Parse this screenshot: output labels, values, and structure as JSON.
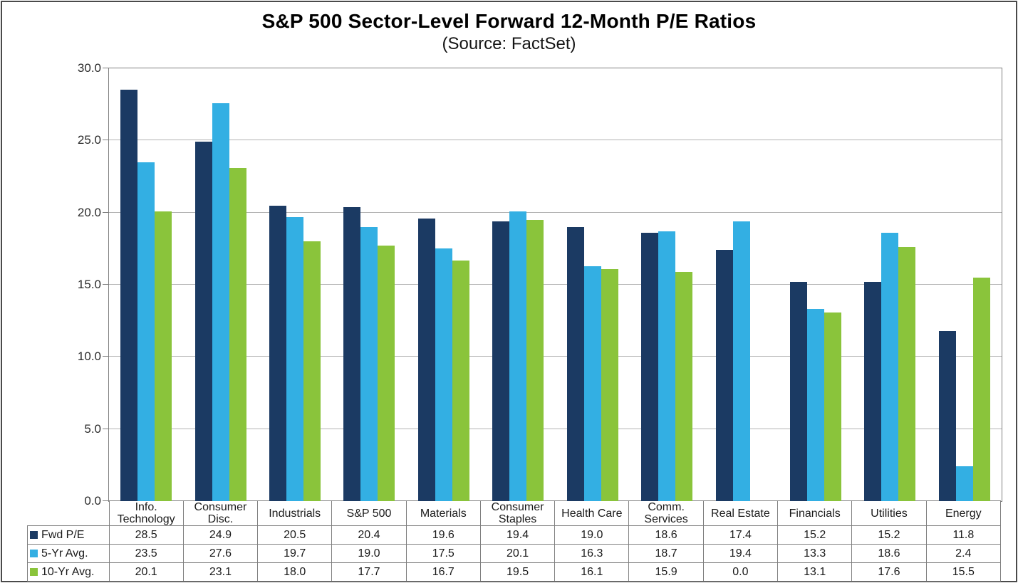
{
  "chart": {
    "title": "S&P 500 Sector-Level Forward 12-Month P/E Ratios",
    "subtitle": "(Source: FactSet)"
  },
  "chart_data": {
    "type": "bar",
    "title": "S&P 500 Sector-Level Forward 12-Month P/E Ratios",
    "subtitle": "(Source: FactSet)",
    "categories": [
      "Info. Technology",
      "Consumer Disc.",
      "Industrials",
      "S&P 500",
      "Materials",
      "Consumer Staples",
      "Health Care",
      "Comm. Services",
      "Real Estate",
      "Financials",
      "Utilities",
      "Energy"
    ],
    "series": [
      {
        "name": "Fwd P/E",
        "color": "#1b3a63",
        "values": [
          28.5,
          24.9,
          20.5,
          20.4,
          19.6,
          19.4,
          19.0,
          18.6,
          17.4,
          15.2,
          15.2,
          11.8
        ]
      },
      {
        "name": "5-Yr Avg.",
        "color": "#33afe3",
        "values": [
          23.5,
          27.6,
          19.7,
          19.0,
          17.5,
          20.1,
          16.3,
          18.7,
          19.4,
          13.3,
          18.6,
          2.4
        ]
      },
      {
        "name": "10-Yr Avg.",
        "color": "#8ac43b",
        "values": [
          20.1,
          23.1,
          18.0,
          17.7,
          16.7,
          19.5,
          16.1,
          15.9,
          0.0,
          13.1,
          17.6,
          15.5
        ]
      }
    ],
    "ylim": [
      0,
      30
    ],
    "ytick_step": 5,
    "ytick_labels": [
      "0.0",
      "5.0",
      "10.0",
      "15.0",
      "20.0",
      "25.0",
      "30.0"
    ],
    "grid": true,
    "legend_position": "data-table-left-column",
    "colors": {
      "grid_line": "#b3b3b3",
      "plot_border": "#7f7f7f",
      "table_border": "#7f7f7f",
      "text": "#1a1a1a"
    }
  }
}
